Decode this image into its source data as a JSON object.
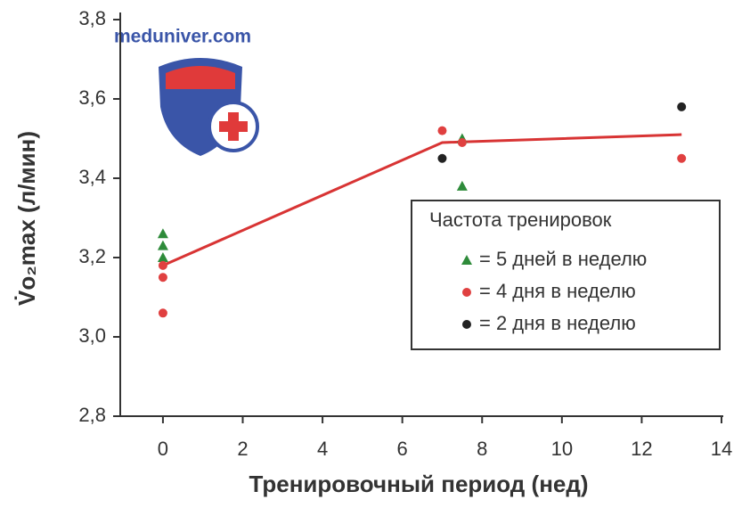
{
  "chart_data": {
    "type": "scatter",
    "watermark": "meduniver.com",
    "xlabel": "Тренировочный период (нед)",
    "ylabel": "V̇o₂max (л/мин)",
    "xlim": [
      -1.07,
      14
    ],
    "xticks": [
      0,
      2,
      4,
      6,
      8,
      10,
      12,
      14
    ],
    "ylim": [
      2.8,
      3.8
    ],
    "yticks": [
      {
        "value": 2.8,
        "label": "2,8"
      },
      {
        "value": 3.0,
        "label": "3,0"
      },
      {
        "value": 3.2,
        "label": "3,2"
      },
      {
        "value": 3.4,
        "label": "3,4"
      },
      {
        "value": 3.6,
        "label": "3,6"
      },
      {
        "value": 3.8,
        "label": "3,8"
      }
    ],
    "legend_title": "Частота тренировок",
    "legend_position": "right",
    "series": [
      {
        "name": "= 5 дней в неделю",
        "color": "#2e8b3a",
        "marker": "triangle",
        "x": [
          0,
          0,
          0,
          7.5,
          7.5
        ],
        "values": [
          3.26,
          3.23,
          3.2,
          3.5,
          3.38
        ]
      },
      {
        "name": "= 4 дня в неделю",
        "color": "#e04040",
        "marker": "circle",
        "x": [
          0,
          0,
          0,
          7,
          7.5,
          13
        ],
        "values": [
          3.18,
          3.15,
          3.06,
          3.52,
          3.49,
          3.45
        ]
      },
      {
        "name": "= 2 дня в неделю",
        "color": "#222222",
        "marker": "circle",
        "x": [
          7,
          13
        ],
        "values": [
          3.45,
          3.58
        ]
      }
    ],
    "trend": {
      "color": "#d83434",
      "x": [
        0,
        7,
        13
      ],
      "values": [
        3.18,
        3.49,
        3.51
      ]
    }
  }
}
